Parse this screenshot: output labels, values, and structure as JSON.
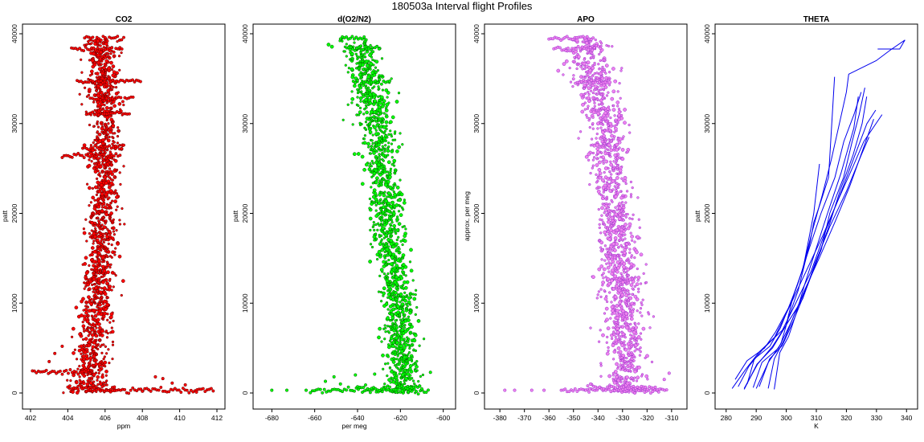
{
  "figure": {
    "title": "180503a   Interval flight Profiles"
  },
  "chart_data": [
    {
      "type": "scatter",
      "title": "CO2",
      "xlabel": "ppm",
      "ylabel": "patt",
      "xlim": [
        402,
        412
      ],
      "ylim": [
        0,
        40000
      ],
      "xticks": [
        402,
        404,
        406,
        408,
        410,
        412
      ],
      "yticks": [
        0,
        10000,
        20000,
        30000,
        40000
      ],
      "colors": {
        "fill": "#ff0000",
        "edge": "#5a0000"
      },
      "profile": {
        "altitude": [
          0,
          5000,
          10000,
          15000,
          20000,
          25000,
          30000,
          35000,
          39000
        ],
        "center": [
          405.1,
          405.3,
          405.6,
          405.7,
          405.9,
          406.0,
          406.0,
          405.9,
          405.7
        ],
        "spread": [
          0.9,
          0.75,
          0.75,
          0.7,
          0.7,
          0.7,
          0.75,
          0.75,
          0.9
        ]
      },
      "level_segments": [
        {
          "altitude": 39500,
          "x": [
            404.9,
            407.0
          ]
        },
        {
          "altitude": 38300,
          "x": [
            404.2,
            406.9
          ]
        },
        {
          "altitude": 34700,
          "x": [
            404.5,
            407.9
          ]
        },
        {
          "altitude": 32800,
          "x": [
            405.2,
            407.5
          ]
        },
        {
          "altitude": 31200,
          "x": [
            405.0,
            407.3
          ]
        },
        {
          "altitude": 27300,
          "x": [
            404.8,
            407.0
          ]
        },
        {
          "altitude": 26400,
          "x": [
            403.7,
            406.8
          ]
        },
        {
          "altitude": 2400,
          "x": [
            402.1,
            405.2
          ]
        },
        {
          "altitude": 600,
          "x": [
            404.0,
            406.5
          ]
        },
        {
          "altitude": 300,
          "x": [
            405.0,
            411.8
          ]
        }
      ],
      "outliers": [
        [
          409.1,
          1600
        ],
        [
          409.6,
          1100
        ],
        [
          410.3,
          900
        ],
        [
          408.7,
          1800
        ],
        [
          403.3,
          4400
        ],
        [
          403.7,
          5200
        ],
        [
          403.0,
          3500
        ],
        [
          408.0,
          200
        ],
        [
          410.9,
          100
        ]
      ]
    },
    {
      "type": "scatter",
      "title": "d(O2/N2)",
      "xlabel": "per meg",
      "ylabel": "patt",
      "xlim": [
        -685,
        -598
      ],
      "ylim": [
        0,
        40000
      ],
      "xticks": [
        -680,
        -660,
        -640,
        -620,
        -600
      ],
      "yticks": [
        0,
        10000,
        20000,
        30000,
        40000
      ],
      "colors": {
        "fill": "#00ff00",
        "edge": "#005a00"
      },
      "profile": {
        "altitude": [
          0,
          5000,
          10000,
          15000,
          20000,
          25000,
          30000,
          35000,
          39000
        ],
        "center": [
          -619,
          -619,
          -621,
          -624,
          -627,
          -629,
          -631,
          -635,
          -640
        ],
        "spread": [
          7,
          7,
          7,
          7,
          7,
          7,
          8,
          8,
          8
        ]
      },
      "level_segments": [
        {
          "altitude": 39500,
          "x": [
            -648,
            -636
          ]
        },
        {
          "altitude": 38400,
          "x": [
            -645,
            -630
          ]
        },
        {
          "altitude": 34600,
          "x": [
            -642,
            -625
          ]
        },
        {
          "altitude": 300,
          "x": [
            -662,
            -607
          ]
        },
        {
          "altitude": 600,
          "x": [
            -640,
            -610
          ]
        }
      ],
      "outliers": [
        [
          -680,
          300
        ],
        [
          -673,
          300
        ],
        [
          -664,
          300
        ],
        [
          -655,
          1300
        ],
        [
          -651,
          1800
        ],
        [
          -648,
          1000
        ],
        [
          -641,
          2000
        ],
        [
          -632,
          2100
        ],
        [
          -606,
          2300
        ],
        [
          -613,
          2500
        ]
      ]
    },
    {
      "type": "scatter",
      "title": "APO",
      "xlabel": "",
      "ylabel": "approx. per meg",
      "xlim": [
        -383,
        -307
      ],
      "ylim": [
        0,
        40000
      ],
      "xticks": [
        -380,
        -370,
        -360,
        -350,
        -340,
        -330,
        -320,
        -310
      ],
      "yticks": [
        0,
        10000,
        20000,
        30000,
        40000
      ],
      "colors": {
        "fill": "#ee82ee",
        "edge": "#9932cc"
      },
      "profile": {
        "altitude": [
          0,
          5000,
          10000,
          15000,
          20000,
          25000,
          30000,
          35000,
          39000
        ],
        "center": [
          -328,
          -329,
          -330,
          -331,
          -333,
          -335,
          -337,
          -341,
          -345
        ],
        "spread": [
          7,
          7,
          7,
          7,
          7,
          7,
          8,
          8,
          8
        ]
      },
      "level_segments": [
        {
          "altitude": 39500,
          "x": [
            -360,
            -342
          ]
        },
        {
          "altitude": 38400,
          "x": [
            -358,
            -339
          ]
        },
        {
          "altitude": 34700,
          "x": [
            -350,
            -337
          ]
        },
        {
          "altitude": 300,
          "x": [
            -355,
            -312
          ]
        },
        {
          "altitude": 600,
          "x": [
            -345,
            -315
          ]
        }
      ],
      "outliers": [
        [
          -378,
          300
        ],
        [
          -374,
          300
        ],
        [
          -367,
          300
        ],
        [
          -362,
          300
        ],
        [
          -343,
          1000
        ],
        [
          -311,
          2200
        ],
        [
          -313,
          1500
        ]
      ]
    },
    {
      "type": "line",
      "title": "THETA",
      "xlabel": "K",
      "ylabel": "patt",
      "xlim": [
        279,
        341
      ],
      "ylim": [
        0,
        40000
      ],
      "xticks": [
        280,
        290,
        300,
        310,
        320,
        330,
        340
      ],
      "yticks": [
        0,
        10000,
        20000,
        30000,
        40000
      ],
      "colors": {
        "line": "#0000ee"
      },
      "series": [
        {
          "x": [
            282,
            286,
            291,
            296,
            301,
            306,
            312,
            317,
            322,
            326,
            331
          ],
          "y": [
            500,
            2600,
            4600,
            6200,
            9000,
            13000,
            17500,
            21500,
            25000,
            28000,
            31000
          ]
        },
        {
          "x": [
            284,
            288,
            293,
            298,
            303,
            308,
            313,
            318,
            323,
            327,
            329
          ],
          "y": [
            700,
            3000,
            5000,
            7000,
            9800,
            13500,
            18000,
            22500,
            26500,
            30000,
            31500
          ]
        },
        {
          "x": [
            286,
            290,
            295,
            300,
            305,
            310,
            315,
            320,
            325,
            328
          ],
          "y": [
            500,
            3200,
            5200,
            7500,
            10500,
            14500,
            18500,
            22500,
            26500,
            28500
          ]
        },
        {
          "x": [
            289,
            292,
            297,
            301,
            306,
            311,
            316,
            321,
            325,
            329
          ],
          "y": [
            600,
            3400,
            5000,
            8000,
            11500,
            15000,
            19000,
            23000,
            27000,
            30500
          ]
        },
        {
          "x": [
            291,
            294,
            298,
            302,
            306,
            310,
            314,
            318,
            322,
            325,
            327
          ],
          "y": [
            700,
            3800,
            5300,
            8000,
            11000,
            14500,
            18500,
            22500,
            26500,
            30000,
            33000
          ]
        },
        {
          "x": [
            294,
            296,
            300,
            303,
            307,
            311,
            315,
            319,
            322,
            324,
            326
          ],
          "y": [
            500,
            3800,
            6000,
            9000,
            12000,
            16000,
            20000,
            24000,
            28000,
            31000,
            34000
          ]
        },
        {
          "x": [
            296,
            298,
            301,
            303,
            306,
            310,
            314,
            318,
            322,
            324
          ],
          "y": [
            400,
            4500,
            6300,
            8800,
            12000,
            16000,
            20000,
            24500,
            29500,
            33000
          ]
        },
        {
          "x": [
            283,
            287,
            292,
            296,
            300,
            304,
            308,
            312,
            316,
            320,
            323,
            325
          ],
          "y": [
            1500,
            3600,
            5000,
            6800,
            9500,
            12000,
            16000,
            20000,
            24000,
            28000,
            31000,
            33500
          ]
        },
        {
          "x": [
            287,
            290,
            294,
            298,
            302,
            305,
            309,
            312,
            315,
            318,
            320,
            321,
            330,
            334,
            339,
            338,
            330
          ],
          "y": [
            1000,
            3800,
            5200,
            7200,
            10500,
            13500,
            18000,
            22000,
            26000,
            30000,
            33500,
            35500,
            37000,
            38200,
            39300,
            38300,
            38300
          ]
        },
        {
          "x": [
            290,
            294,
            298,
            301,
            304,
            306,
            308,
            309,
            311,
            314,
            316
          ],
          "y": [
            500,
            3400,
            5500,
            8500,
            11500,
            14000,
            17000,
            19000,
            21000,
            24000,
            35200
          ]
        },
        {
          "x": [
            286,
            291,
            296,
            300,
            303,
            306,
            309,
            311
          ],
          "y": [
            400,
            3200,
            5000,
            7500,
            10500,
            14000,
            20000,
            25500
          ]
        }
      ]
    }
  ]
}
